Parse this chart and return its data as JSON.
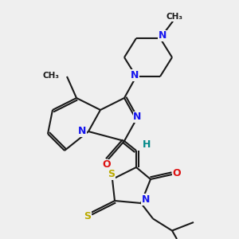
{
  "bg": "#efefef",
  "bc": "#1a1a1a",
  "nc": "#1515ee",
  "oc": "#dd1111",
  "sc": "#bbaa00",
  "hc": "#008888",
  "lw": 1.5,
  "dlw": 1.5,
  "fs": 9,
  "figsize": [
    3.0,
    3.0
  ],
  "dpi": 100,
  "xlim": [
    0,
    10
  ],
  "ylim": [
    0,
    10
  ]
}
